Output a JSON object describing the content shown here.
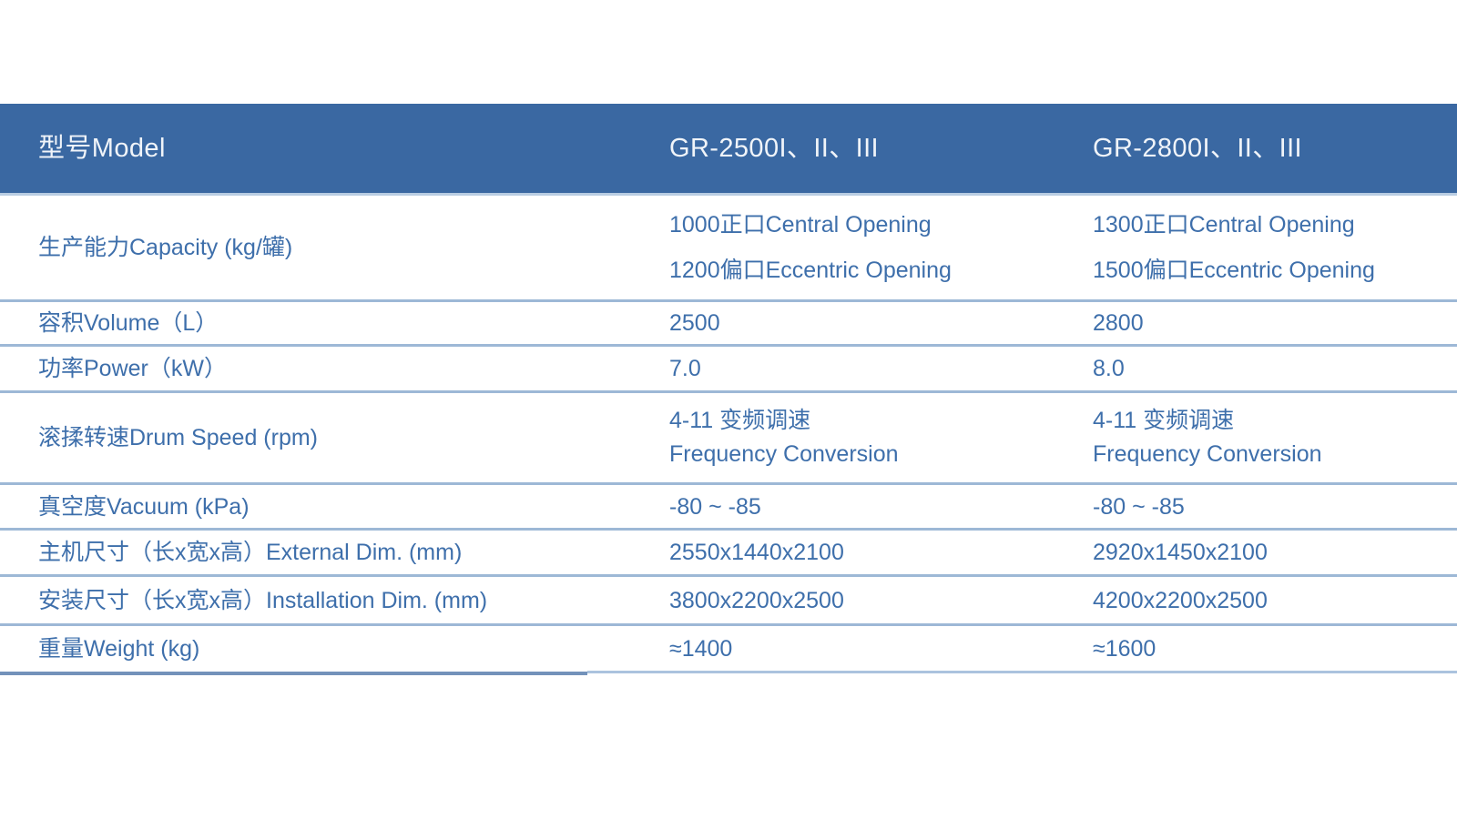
{
  "colors": {
    "header_bg": "#3a68a2",
    "header_text": "#f0f4f9",
    "body_text": "#3e6fab",
    "divider": "#9db8d6"
  },
  "table": {
    "header": {
      "model_label": "型号Model",
      "model_1": "GR-2500I、II、III",
      "model_2": "GR-2800I、II、III"
    },
    "rows": [
      {
        "label": "生产能力Capacity (kg/罐)",
        "col1": [
          "1000正口Central Opening",
          "1200偏口Eccentric Opening"
        ],
        "col2": [
          "1300正口Central Opening",
          "1500偏口Eccentric Opening"
        ]
      },
      {
        "label": "容积Volume（L）",
        "col1": [
          "2500"
        ],
        "col2": [
          "2800"
        ]
      },
      {
        "label": "功率Power（kW）",
        "col1": [
          "7.0"
        ],
        "col2": [
          "8.0"
        ]
      },
      {
        "label": "滚揉转速Drum Speed (rpm)",
        "col1": [
          "4-11 变频调速",
          "Frequency Conversion"
        ],
        "col2": [
          "4-11 变频调速",
          "Frequency Conversion"
        ]
      },
      {
        "label": "真空度Vacuum (kPa)",
        "col1": [
          "-80 ~ -85"
        ],
        "col2": [
          "-80 ~ -85"
        ]
      },
      {
        "label": "主机尺寸（长x宽x高）External Dim. (mm)",
        "col1": [
          "2550x1440x2100"
        ],
        "col2": [
          "2920x1450x2100"
        ]
      },
      {
        "label": "安装尺寸（长x宽x高）Installation Dim. (mm)",
        "col1": [
          "3800x2200x2500"
        ],
        "col2": [
          "4200x2200x2500"
        ]
      },
      {
        "label": "重量Weight (kg)",
        "col1": [
          "≈1400"
        ],
        "col2": [
          "≈1600"
        ]
      }
    ]
  }
}
